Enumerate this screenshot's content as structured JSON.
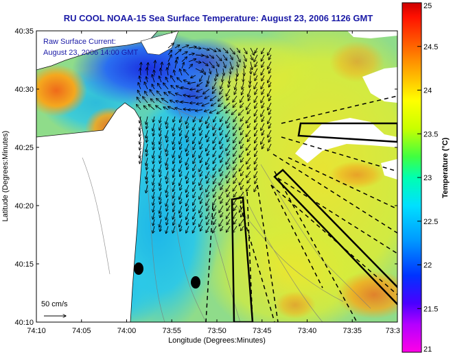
{
  "title": "RU COOL  NOAA-15  Sea Surface Temperature:  August 23, 2006 1126 GMT",
  "overlay": {
    "line1": "Raw Surface Current:",
    "line2": "August 23, 2006 14:00 GMT"
  },
  "scale_bar_label": "50 cm/s",
  "x_axis": {
    "label": "Longitude (Degrees:Minutes)",
    "ticks": [
      "74:10",
      "74:05",
      "74:00",
      "73:55",
      "73:50",
      "73:45",
      "73:40",
      "73:35",
      "73:3"
    ]
  },
  "y_axis": {
    "label": "Latitude (Degrees:Minutes)",
    "ticks": [
      "40:35",
      "40:30",
      "40:25",
      "40:20",
      "40:15",
      "40:10"
    ]
  },
  "colorbar": {
    "label": "Temperature (°C)",
    "ticks": [
      "25",
      "24.5",
      "24",
      "23.5",
      "23",
      "22.5",
      "22",
      "21.5",
      "21"
    ],
    "range": [
      21,
      25
    ]
  },
  "colors": {
    "title": "#1a1aa6",
    "land": "#ffffff",
    "cold": "#1f38d8",
    "warm": "#f07a1c"
  }
}
